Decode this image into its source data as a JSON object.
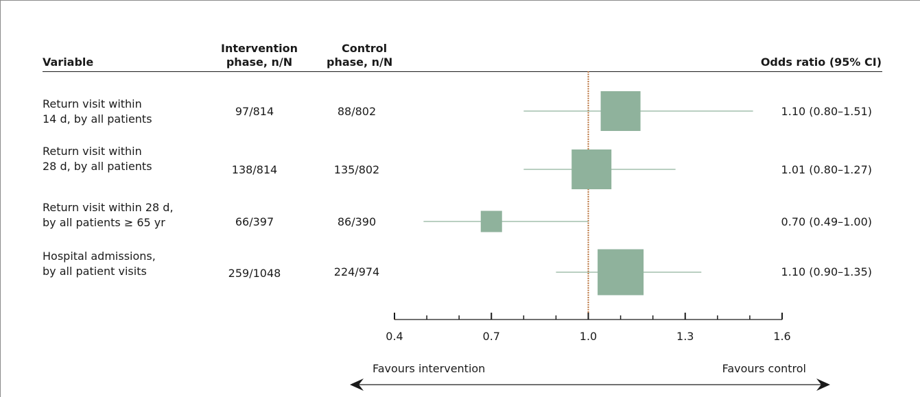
{
  "headers": {
    "variable": "Variable",
    "intervention": [
      "Intervention",
      "phase, n/N"
    ],
    "control": [
      "Control",
      "phase, n/N"
    ],
    "odds_ratio": "Odds ratio (95% CI)"
  },
  "rows": [
    {
      "label": [
        "Return visit within",
        "14 d, by all patients"
      ],
      "intervention": "97/814",
      "control": "88/802",
      "or_text": "1.10 (0.80–1.51)"
    },
    {
      "label": [
        "Return visit within",
        "28 d, by all patients"
      ],
      "intervention": "138/814",
      "control": "135/802",
      "or_text": "1.01 (0.80–1.27)"
    },
    {
      "label": [
        "Return visit within 28 d,",
        "by all patients ≥ 65 yr"
      ],
      "intervention": "66/397",
      "control": "86/390",
      "or_text": "0.70 (0.49–1.00)"
    },
    {
      "label": [
        "Hospital admissions,",
        "by all patient visits"
      ],
      "intervention": "259/1048",
      "control": "224/974",
      "or_text": "1.10 (0.90–1.35)"
    }
  ],
  "favours": {
    "left": "Favours intervention",
    "right": "Favours control"
  },
  "colors": {
    "box": "#8fb29c",
    "ci_line": "#8fb29c",
    "ref_line": "#b8703a",
    "axis": "#1a1a1a"
  },
  "chart_data": {
    "type": "forest",
    "x_axis": {
      "range": [
        0.4,
        1.6
      ],
      "ticks": [
        0.4,
        0.7,
        1.0,
        1.3,
        1.6
      ],
      "tick_labels": [
        "0.4",
        "0.7",
        "1.0",
        "1.3",
        "1.6"
      ],
      "minor_step": 0.1
    },
    "reference_line": 1.0,
    "series": [
      {
        "or": 1.1,
        "lo": 0.8,
        "hi": 1.51
      },
      {
        "or": 1.01,
        "lo": 0.8,
        "hi": 1.27
      },
      {
        "or": 0.7,
        "lo": 0.49,
        "hi": 1.0
      },
      {
        "or": 1.1,
        "lo": 0.9,
        "hi": 1.35
      }
    ]
  }
}
